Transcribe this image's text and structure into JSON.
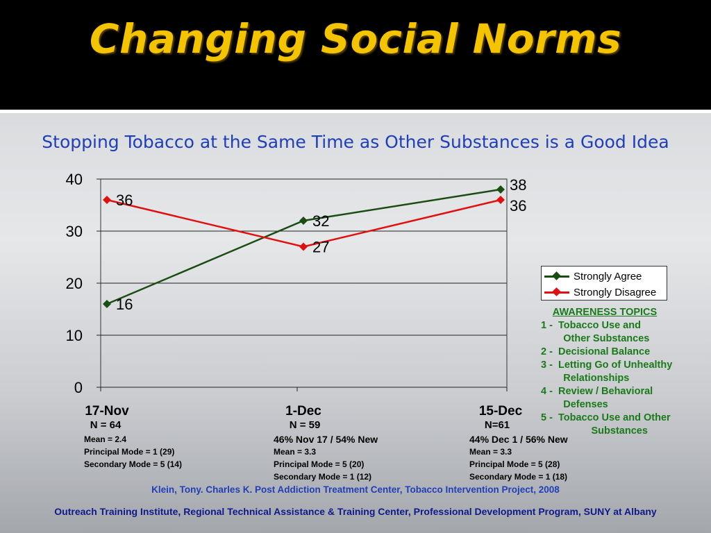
{
  "slide": {
    "title": "Changing Social Norms",
    "subtitle": "Stopping Tobacco at the Same Time as Other Substances is a Good Idea",
    "citation": "Klein, Tony. Charles K. Post Addiction Treatment Center, Tobacco Intervention Project, 2008",
    "footer": "Outreach Training Institute, Regional Technical Assistance & Training Center, Professional Development Program, SUNY at Albany",
    "title_color": "#f5c400",
    "subtitle_color": "#1f3fb8"
  },
  "chart_data": {
    "type": "line",
    "title": "",
    "xlabel": "",
    "ylabel": "",
    "categories": [
      "17-Nov",
      "1-Dec",
      "15-Dec"
    ],
    "ylim": [
      0,
      40
    ],
    "yticks": [
      0,
      10,
      20,
      30,
      40
    ],
    "grid": true,
    "legend_position": "right",
    "series": [
      {
        "name": "Strongly Agree",
        "values": [
          16,
          32,
          38
        ],
        "color": "#1a4d12",
        "marker": "diamond"
      },
      {
        "name": "Strongly Disagree",
        "values": [
          36,
          27,
          36
        ],
        "color": "#e01010",
        "marker": "diamond"
      }
    ]
  },
  "categories_info": [
    {
      "n": "N = 64",
      "lines": [
        "Mean = 2.4",
        "Principal Mode = 1 (29)",
        "Secondary Mode = 5 (14)"
      ],
      "first_line_big": false
    },
    {
      "n": "N = 59",
      "lines": [
        "46% Nov 17 /  54% New",
        "Mean = 3.3",
        "Principal Mode = 5 (20)",
        "Secondary Mode = 1 (12)"
      ],
      "first_line_big": true
    },
    {
      "n": "N=61",
      "lines": [
        "44% Dec 1 / 56% New",
        "Mean = 3.3",
        "Principal Mode = 5 (28)",
        "Secondary Mode = 1 (18)"
      ],
      "first_line_big": true
    }
  ],
  "awareness": {
    "heading": "AWARENESS TOPICS",
    "color": "#1a7a1a",
    "items": [
      "1 -  Tobacco Use and",
      "        Other Substances",
      "2 -  Decisional Balance",
      "3 -  Letting Go of Unhealthy",
      "        Relationships",
      "4 -  Review / Behavioral",
      "        Defenses",
      "5 -  Tobacco Use and Other",
      "                  Substances"
    ]
  }
}
